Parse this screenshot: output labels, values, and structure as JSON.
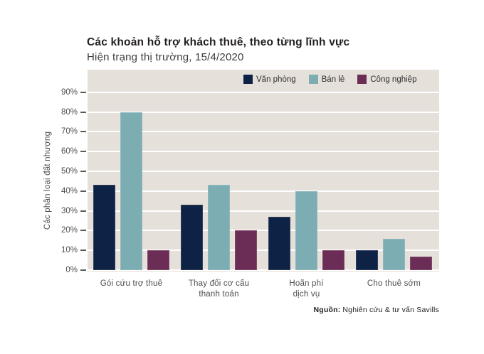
{
  "header": {
    "title": "Các khoản hỗ trợ khách thuê, theo từng lĩnh vực",
    "subtitle": "Hiện trạng thị trường, 15/4/2020"
  },
  "chart_data": {
    "type": "bar",
    "title": "Các khoản hỗ trợ khách thuê, theo từng lĩnh vực",
    "subtitle": "Hiện trạng thị trường, 15/4/2020",
    "categories": [
      [
        "Gói cứu trợ thuê"
      ],
      [
        "Thay đổi cơ cấu",
        "thanh toán"
      ],
      [
        "Hoãn phí",
        "dịch vụ"
      ],
      [
        "Cho thuê sớm"
      ]
    ],
    "series": [
      {
        "name": "Văn phòng",
        "color": "#0e2245",
        "values": [
          43,
          33,
          27,
          10
        ]
      },
      {
        "name": "Bán lẻ",
        "color": "#7cadb3",
        "values": [
          80,
          43,
          40,
          16
        ]
      },
      {
        "name": "Công nghiệp",
        "color": "#6b2d55",
        "values": [
          10,
          20,
          10,
          7
        ]
      }
    ],
    "xlabel": "",
    "ylabel": "Các phân loại đất nhượng",
    "ylim": [
      0,
      90
    ],
    "ytick_step": 10,
    "ytick_suffix": "%",
    "grid": true,
    "gridline_color": "#ffffff",
    "plot_bg": "#e6e0da",
    "legend_position": "top-inside"
  },
  "source": {
    "label": "Nguồn:",
    "text": "Nghiên cứu & tư vấn Savills"
  }
}
